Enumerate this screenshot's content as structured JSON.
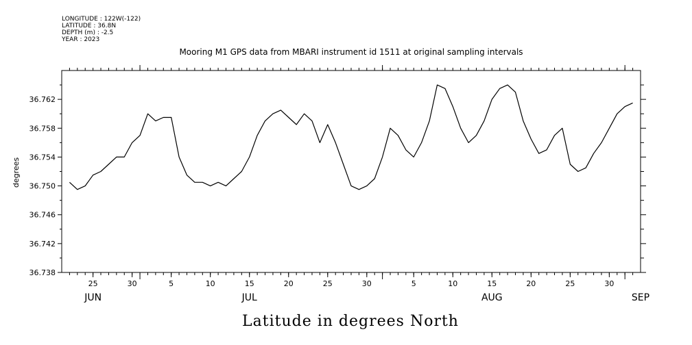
{
  "header": {
    "longitude": "LONGITUDE : 122W(-122)",
    "latitude": "LATITUDE : 36.8N",
    "depth": "DEPTH (m) : -2.5",
    "year": "YEAR : 2023"
  },
  "chart_data": {
    "type": "line",
    "title": "Mooring M1 GPS data from MBARI instrument id 1511 at original sampling intervals",
    "ylabel": "degrees",
    "xlabel": "Latitude in degrees North",
    "ylim": [
      36.738,
      36.766
    ],
    "yticks": [
      36.738,
      36.742,
      36.746,
      36.75,
      36.754,
      36.758,
      36.762
    ],
    "ytick_labels": [
      "36.738",
      "36.742",
      "36.746",
      "36.750",
      "36.754",
      "36.758",
      "36.762"
    ],
    "x_range": [
      "2023-06-21",
      "2023-09-03"
    ],
    "x_tick_days": [
      {
        "date": "2023-06-25",
        "label": "25"
      },
      {
        "date": "2023-06-30",
        "label": "30"
      },
      {
        "date": "2023-07-05",
        "label": "5"
      },
      {
        "date": "2023-07-10",
        "label": "10"
      },
      {
        "date": "2023-07-15",
        "label": "15"
      },
      {
        "date": "2023-07-20",
        "label": "20"
      },
      {
        "date": "2023-07-25",
        "label": "25"
      },
      {
        "date": "2023-07-30",
        "label": "30"
      },
      {
        "date": "2023-08-05",
        "label": "5"
      },
      {
        "date": "2023-08-10",
        "label": "10"
      },
      {
        "date": "2023-08-15",
        "label": "15"
      },
      {
        "date": "2023-08-20",
        "label": "20"
      },
      {
        "date": "2023-08-25",
        "label": "25"
      },
      {
        "date": "2023-08-30",
        "label": "30"
      }
    ],
    "months": [
      {
        "date": "2023-06-25",
        "label": "JUN"
      },
      {
        "date": "2023-07-15",
        "label": "JUL"
      },
      {
        "date": "2023-08-15",
        "label": "AUG"
      },
      {
        "date": "2023-09-03",
        "label": "SEP"
      }
    ],
    "series": [
      {
        "x": [
          "2023-06-22",
          "2023-06-23",
          "2023-06-24",
          "2023-06-25",
          "2023-06-26",
          "2023-06-27",
          "2023-06-28",
          "2023-06-29",
          "2023-06-30",
          "2023-07-01",
          "2023-07-02",
          "2023-07-03",
          "2023-07-04",
          "2023-07-05",
          "2023-07-06",
          "2023-07-07",
          "2023-07-08",
          "2023-07-09",
          "2023-07-10",
          "2023-07-11",
          "2023-07-12",
          "2023-07-13",
          "2023-07-14",
          "2023-07-15",
          "2023-07-16",
          "2023-07-17",
          "2023-07-18",
          "2023-07-19",
          "2023-07-20",
          "2023-07-21",
          "2023-07-22",
          "2023-07-23",
          "2023-07-24",
          "2023-07-25",
          "2023-07-26",
          "2023-07-27",
          "2023-07-28",
          "2023-07-29",
          "2023-07-30",
          "2023-07-31",
          "2023-08-01",
          "2023-08-02",
          "2023-08-03",
          "2023-08-04",
          "2023-08-05",
          "2023-08-06",
          "2023-08-07",
          "2023-08-08",
          "2023-08-09",
          "2023-08-10",
          "2023-08-11",
          "2023-08-12",
          "2023-08-13",
          "2023-08-14",
          "2023-08-15",
          "2023-08-16",
          "2023-08-17",
          "2023-08-18",
          "2023-08-19",
          "2023-08-20",
          "2023-08-21",
          "2023-08-22",
          "2023-08-23",
          "2023-08-24",
          "2023-08-25",
          "2023-08-26",
          "2023-08-27",
          "2023-08-28",
          "2023-08-29",
          "2023-08-30",
          "2023-08-31",
          "2023-09-01",
          "2023-09-02"
        ],
        "values": [
          36.7505,
          36.7495,
          36.75,
          36.7515,
          36.752,
          36.753,
          36.754,
          36.754,
          36.756,
          36.757,
          36.76,
          36.759,
          36.7595,
          36.7595,
          36.754,
          36.7515,
          36.7505,
          36.7505,
          36.75,
          36.7505,
          36.75,
          36.751,
          36.752,
          36.754,
          36.757,
          36.759,
          36.76,
          36.7605,
          36.7595,
          36.7585,
          36.76,
          36.759,
          36.756,
          36.7585,
          36.756,
          36.753,
          36.75,
          36.7495,
          36.75,
          36.751,
          36.754,
          36.758,
          36.757,
          36.755,
          36.754,
          36.756,
          36.759,
          36.764,
          36.7635,
          36.761,
          36.758,
          36.756,
          36.757,
          36.759,
          36.762,
          36.7635,
          36.764,
          36.763,
          36.759,
          36.7565,
          36.7545,
          36.755,
          36.757,
          36.758,
          36.753,
          36.752,
          36.7525,
          36.7545,
          36.756,
          36.758,
          36.76,
          36.761,
          36.7615
        ]
      }
    ]
  }
}
